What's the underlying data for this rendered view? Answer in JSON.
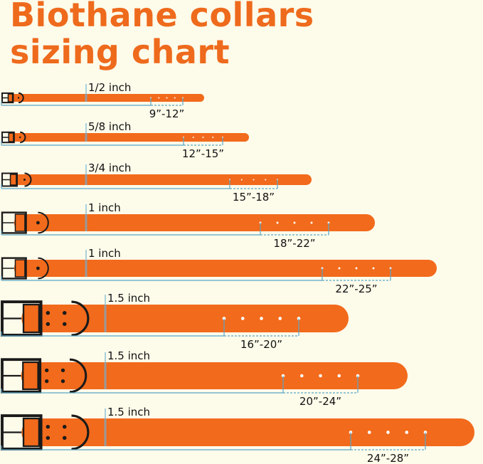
{
  "title": {
    "line1": "Biothane collars",
    "line2": "sizing chart"
  },
  "colors": {
    "title": "#ee6a1c",
    "strap": "#f26a1b",
    "hardware": "#1a1a1a",
    "measure_line": "#5aa6c8",
    "background": "#fdfbea"
  },
  "collars": [
    {
      "width": "1/2 inch",
      "range": "9”-12”"
    },
    {
      "width": "5/8 inch",
      "range": "12”-15”"
    },
    {
      "width": "3/4 inch",
      "range": "15”-18”"
    },
    {
      "width": "1 inch",
      "range": "18”-22”"
    },
    {
      "width": "1 inch",
      "range": "22”-25”"
    },
    {
      "width": "1.5 inch",
      "range": "16”-20”"
    },
    {
      "width": "1.5 inch",
      "range": "20”-24”"
    },
    {
      "width": "1.5 inch",
      "range": "24”-28”"
    }
  ]
}
